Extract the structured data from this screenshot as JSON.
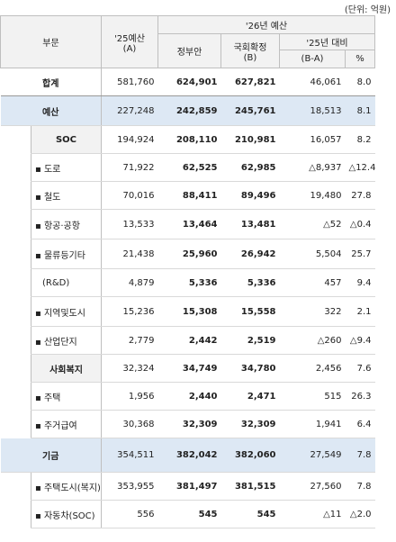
{
  "unit": "(단위: 억원)",
  "header": {
    "category": "부문",
    "prev": "'25예산",
    "prev_sub": "(A)",
    "budget26": "'26년 예산",
    "gov": "정부안",
    "assembly": "국회확정",
    "assembly_sub": "(B)",
    "vs25": "'25년 대비",
    "diff": "(B-A)",
    "pct": "%"
  },
  "rows": [
    {
      "label": "합계",
      "values": [
        "581,760",
        "624,901",
        "627,821",
        "46,061",
        "8.0"
      ]
    },
    {
      "label": "예산",
      "values": [
        "227,248",
        "242,859",
        "245,761",
        "18,513",
        "8.1"
      ]
    },
    {
      "label": "SOC",
      "values": [
        "194,924",
        "208,110",
        "210,981",
        "16,057",
        "8.2"
      ]
    },
    {
      "label": "▪ 도로",
      "values": [
        "71,922",
        "62,525",
        "62,985",
        "△8,937",
        "△12.4"
      ]
    },
    {
      "label": "▪ 철도",
      "values": [
        "70,016",
        "88,411",
        "89,496",
        "19,480",
        "27.8"
      ]
    },
    {
      "label": "▪ 항공·공항",
      "values": [
        "13,533",
        "13,464",
        "13,481",
        "△52",
        "△0.4"
      ]
    },
    {
      "label": "▪ 물류등기타",
      "values": [
        "21,438",
        "25,960",
        "26,942",
        "5,504",
        "25.7"
      ]
    },
    {
      "label": "(R&D)",
      "values": [
        "4,879",
        "5,336",
        "5,336",
        "457",
        "9.4"
      ]
    },
    {
      "label": "▪ 지역및도시",
      "values": [
        "15,236",
        "15,308",
        "15,558",
        "322",
        "2.1"
      ]
    },
    {
      "label": "▪ 산업단지",
      "values": [
        "2,779",
        "2,442",
        "2,519",
        "△260",
        "△9.4"
      ]
    },
    {
      "label": "사회복지",
      "values": [
        "32,324",
        "34,749",
        "34,780",
        "2,456",
        "7.6"
      ]
    },
    {
      "label": "▪ 주택",
      "values": [
        "1,956",
        "2,440",
        "2,471",
        "515",
        "26.3"
      ]
    },
    {
      "label": "▪ 주거급여",
      "values": [
        "30,368",
        "32,309",
        "32,309",
        "1,941",
        "6.4"
      ]
    },
    {
      "label": "기금",
      "values": [
        "354,511",
        "382,042",
        "382,060",
        "27,549",
        "7.8"
      ]
    },
    {
      "label": "▪ 주택도시(복지)",
      "values": [
        "353,955",
        "381,497",
        "381,515",
        "27,560",
        "7.8"
      ]
    },
    {
      "label": "▪ 자동차(SOC)",
      "values": [
        "556",
        "545",
        "545",
        "△11",
        "△2.0"
      ]
    }
  ]
}
